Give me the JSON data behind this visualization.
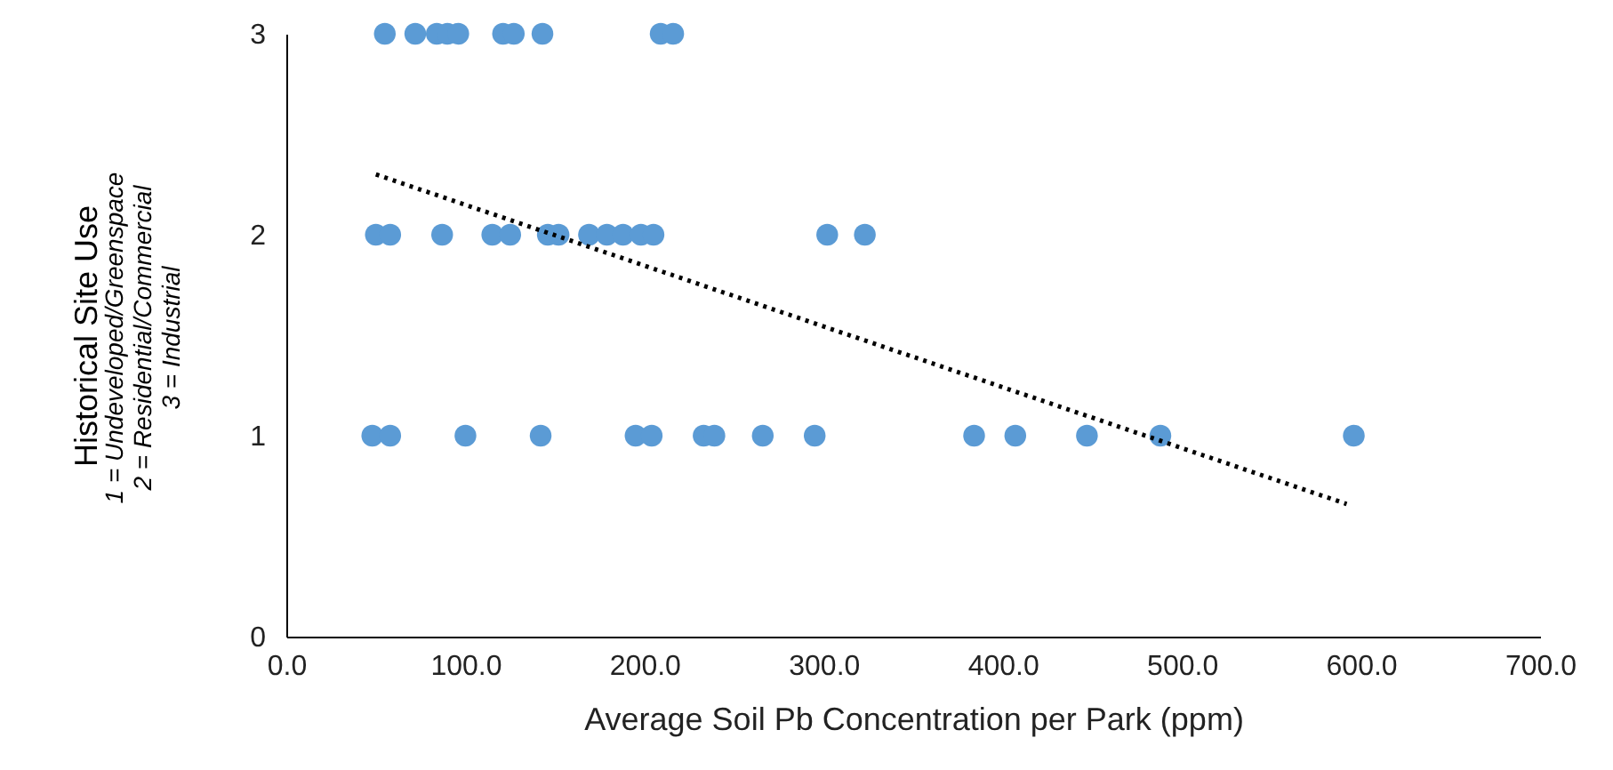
{
  "chart_data": {
    "type": "scatter",
    "xlabel": "Average Soil Pb Concentration per Park (ppm)",
    "ylabel": "Historical Site Use",
    "annotations": [
      "1 = Undeveloped/Greenspace",
      "2 = Residential/Commercial",
      "3 = Industrial"
    ],
    "xlim": [
      0,
      700
    ],
    "xticks": [
      {
        "value": 0,
        "label": "0.0"
      },
      {
        "value": 100,
        "label": "100.0"
      },
      {
        "value": 200,
        "label": "200.0"
      },
      {
        "value": 300,
        "label": "300.0"
      },
      {
        "value": 400,
        "label": "400.0"
      },
      {
        "value": 500,
        "label": "500.0"
      },
      {
        "value": 600,
        "label": "600.0"
      },
      {
        "value": 700,
        "label": "700.0"
      }
    ],
    "ylim": [
      0,
      3
    ],
    "yticks": [
      0,
      1,
      2,
      3
    ],
    "grid": false,
    "marker": "circle",
    "series": [
      {
        "color": "#5b9bd5",
        "x": [
          55,
          72,
          84,
          90,
          96,
          121,
          127,
          143,
          209,
          216,
          50,
          58,
          87,
          115,
          125,
          146,
          152,
          169,
          179,
          188,
          198,
          205,
          302,
          323,
          48,
          58,
          100,
          142,
          195,
          204,
          233,
          239,
          266,
          295,
          384,
          407,
          447,
          488,
          596
        ],
        "values": [
          3,
          3,
          3,
          3,
          3,
          3,
          3,
          3,
          3,
          3,
          2,
          2,
          2,
          2,
          2,
          2,
          2,
          2,
          2,
          2,
          2,
          2,
          2,
          2,
          1,
          1,
          1,
          1,
          1,
          1,
          1,
          1,
          1,
          1,
          1,
          1,
          1,
          1,
          1
        ]
      },
      {
        "type": "line",
        "color": "#000000",
        "line_style": "dotted",
        "marker": "none",
        "x": [
          50,
          592
        ],
        "values": [
          2.3,
          0.66
        ]
      }
    ]
  }
}
